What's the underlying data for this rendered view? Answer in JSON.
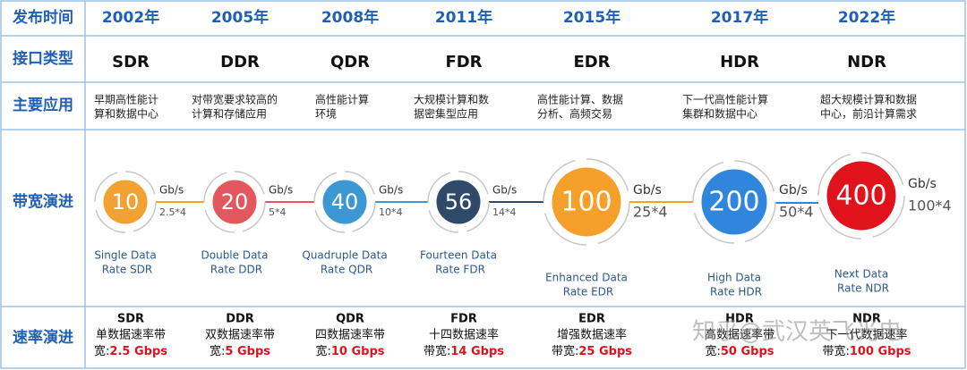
{
  "row_labels": [
    "发布时间",
    "接口类型",
    "主要应用",
    "带宽演进",
    "速率演进"
  ],
  "columns": [
    {
      "year": "2002年",
      "type": "SDR",
      "application": [
        "早期高性能计",
        "算和数据中心"
      ],
      "bandwidth": {
        "value": "10",
        "unit": "Gb/s",
        "lanes": "2.5*4",
        "name": [
          "Single Data",
          "Rate SDR"
        ],
        "color": "#f2a233"
      },
      "rate": {
        "name": "SDR",
        "desc": "单数据速率带",
        "prefix": "宽:",
        "speed": "2.5 Gbps"
      }
    },
    {
      "year": "2005年",
      "type": "DDR",
      "application": [
        "对带宽要求较高的",
        "计算和存储应用"
      ],
      "bandwidth": {
        "value": "20",
        "unit": "Gb/s",
        "lanes": "5*4",
        "name": [
          "Double Data",
          "Rate DDR"
        ],
        "color": "#e3585e"
      },
      "rate": {
        "name": "DDR",
        "desc": "双数据速率带",
        "prefix": "宽:",
        "speed": "5 Gbps"
      }
    },
    {
      "year": "2008年",
      "type": "QDR",
      "application": [
        "高性能计算",
        "环境"
      ],
      "bandwidth": {
        "value": "40",
        "unit": "Gb/s",
        "lanes": "10*4",
        "name": [
          "Quadruple Data",
          "Rate QDR"
        ],
        "color": "#3b98d4"
      },
      "rate": {
        "name": "QDR",
        "desc": "四数据速率带",
        "prefix": "宽:",
        "speed": "10 Gbps"
      }
    },
    {
      "year": "2011年",
      "type": "FDR",
      "application": [
        "大规模计算和数",
        "据密集型应用"
      ],
      "bandwidth": {
        "value": "56",
        "unit": "Gb/s",
        "lanes": "14*4",
        "name": [
          "Fourteen Data",
          "Rate FDR"
        ],
        "color": "#2f4a69"
      },
      "rate": {
        "name": "FDR",
        "desc": "十四数据速率",
        "prefix": "带宽:",
        "speed": "14 Gbps"
      }
    },
    {
      "year": "2015年",
      "type": "EDR",
      "application": [
        "高性能计算、数据",
        "分析、高频交易"
      ],
      "bandwidth": {
        "value": "100",
        "unit": "Gb/s",
        "lanes": "25*4",
        "name": [
          "Enhanced Data",
          "Rate EDR"
        ],
        "color": "#f6a02c"
      },
      "rate": {
        "name": "EDR",
        "desc": "增强数据速率",
        "prefix": "带宽:",
        "speed": "25 Gbps"
      }
    },
    {
      "year": "2017年",
      "type": "HDR",
      "application": [
        "下一代高性能计算",
        "集群和数据中心"
      ],
      "bandwidth": {
        "value": "200",
        "unit": "Gb/s",
        "lanes": "50*4",
        "name": [
          "High Data",
          "Rate HDR"
        ],
        "color": "#2f86dc"
      },
      "rate": {
        "name": "HDR",
        "desc": "高数据速率带",
        "prefix": "宽:",
        "speed": "50 Gbps"
      }
    },
    {
      "year": "2022年",
      "type": "NDR",
      "application": [
        "超大规模计算和数据",
        "中心，前沿计算需求"
      ],
      "bandwidth": {
        "value": "400",
        "unit": "Gb/s",
        "lanes": "100*4",
        "name": [
          "Next Data",
          "Rate NDR"
        ],
        "color": "#e0121c"
      },
      "rate": {
        "name": "NDR",
        "desc": "下一代数据速率",
        "prefix": "带宽:",
        "speed": "100 Gbps"
      }
    }
  ],
  "watermark": "知乎@武汉英飞光电"
}
